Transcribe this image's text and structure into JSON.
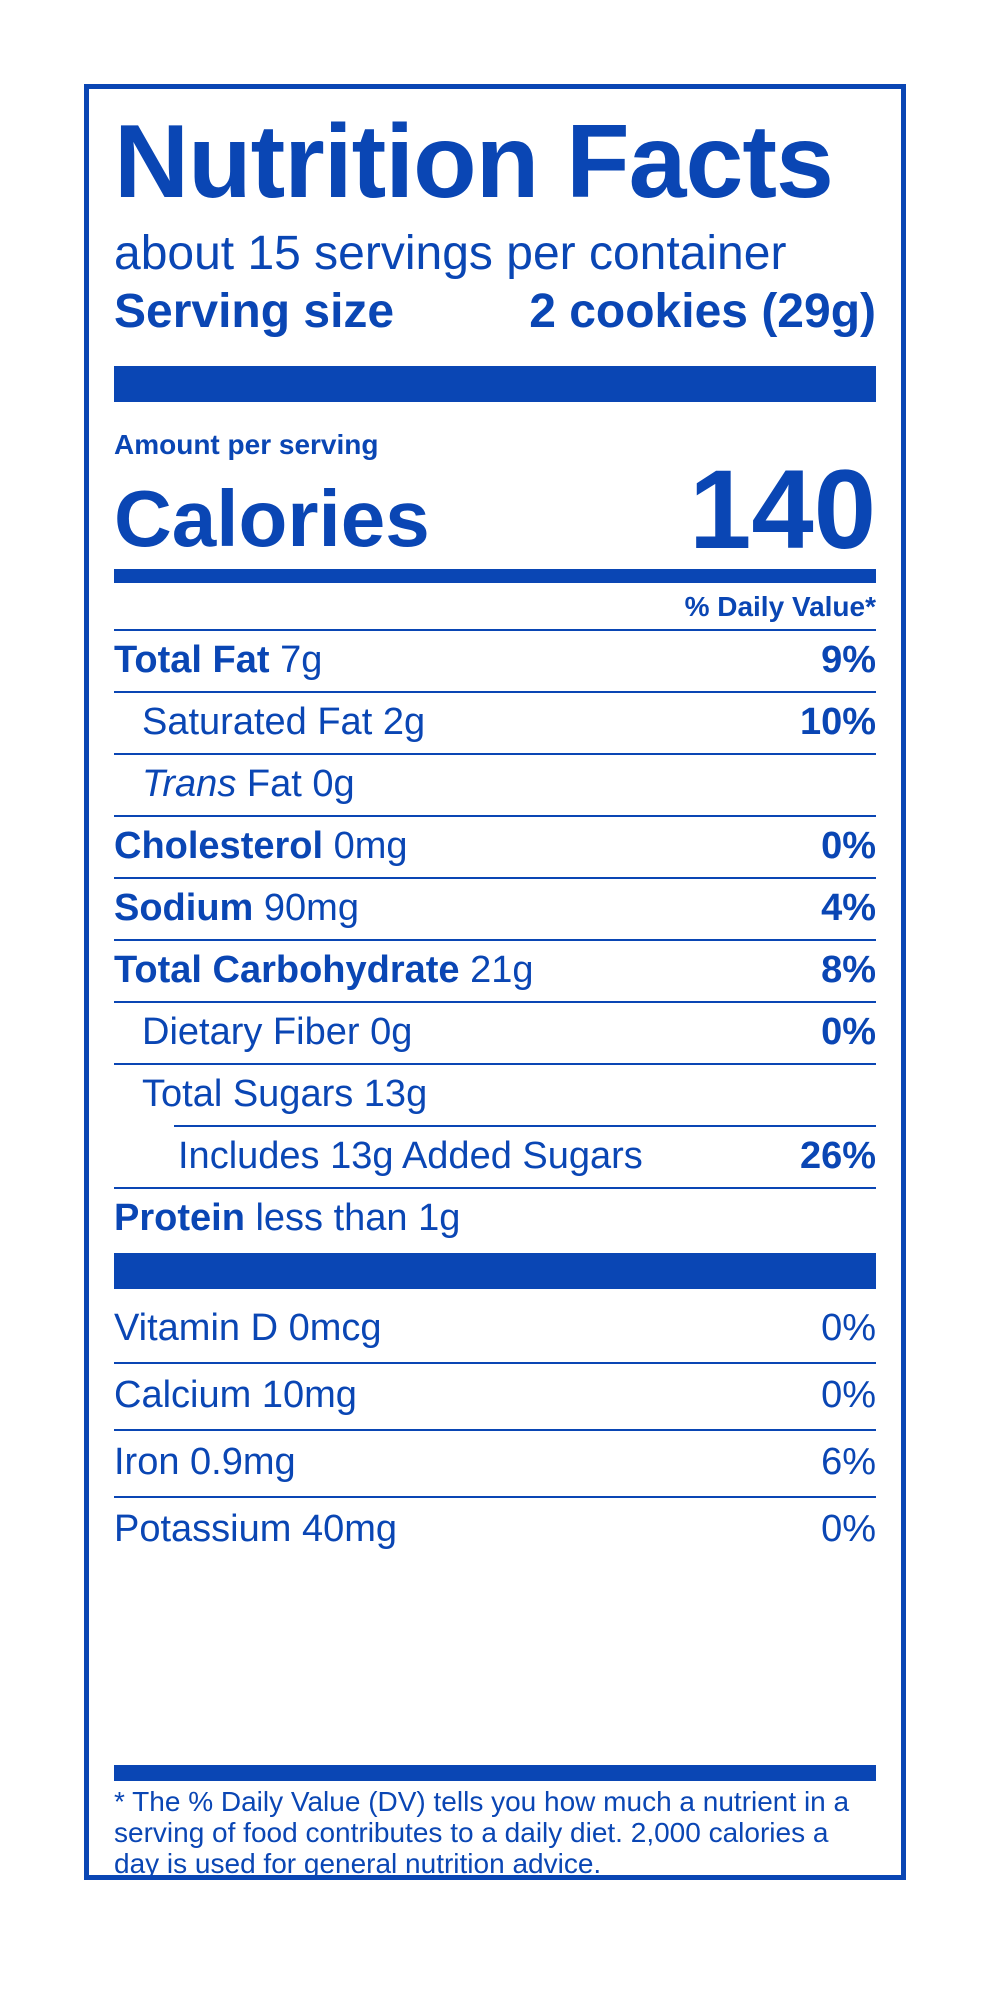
{
  "title": "Nutrition Facts",
  "servings_per_container": "about 15 servings per container",
  "serving_size": {
    "label": "Serving size",
    "value": "2 cookies (29g)"
  },
  "amount_per_serving": "Amount per serving",
  "calories": {
    "label": "Calories",
    "value": "140"
  },
  "daily_value_header": "% Daily Value*",
  "nutrients": [
    {
      "name": "Total Fat",
      "amount": "7g",
      "dv": "9%"
    },
    {
      "name": "Saturated Fat",
      "amount": "2g",
      "dv": "10%"
    },
    {
      "name": "Trans",
      "amount": "Fat 0g",
      "dv": ""
    },
    {
      "name": "Cholesterol",
      "amount": "0mg",
      "dv": "0%"
    },
    {
      "name": "Sodium",
      "amount": "90mg",
      "dv": "4%"
    },
    {
      "name": "Total Carbohydrate",
      "amount": "21g",
      "dv": "8%"
    },
    {
      "name": "Dietary Fiber",
      "amount": "0g",
      "dv": "0%"
    },
    {
      "name": "Total Sugars",
      "amount": "13g",
      "dv": ""
    },
    {
      "name": "Includes 13g Added Sugars",
      "amount": "",
      "dv": "26%"
    },
    {
      "name": "Protein",
      "amount": "less than 1g",
      "dv": ""
    }
  ],
  "vitamins": [
    {
      "name": "Vitamin D",
      "amount": "0mcg",
      "dv": "0%"
    },
    {
      "name": "Calcium",
      "amount": "10mg",
      "dv": "0%"
    },
    {
      "name": "Iron",
      "amount": "0.9mg",
      "dv": "6%"
    },
    {
      "name": "Potassium",
      "amount": "40mg",
      "dv": "0%"
    }
  ],
  "footnote": "* The % Daily Value (DV) tells you how much a nutrient in a serving of food contributes to a daily diet. 2,000 calories a day is used for general nutrition advice.",
  "colors": {
    "ink": "#0a46b4",
    "background": "#ffffff"
  }
}
